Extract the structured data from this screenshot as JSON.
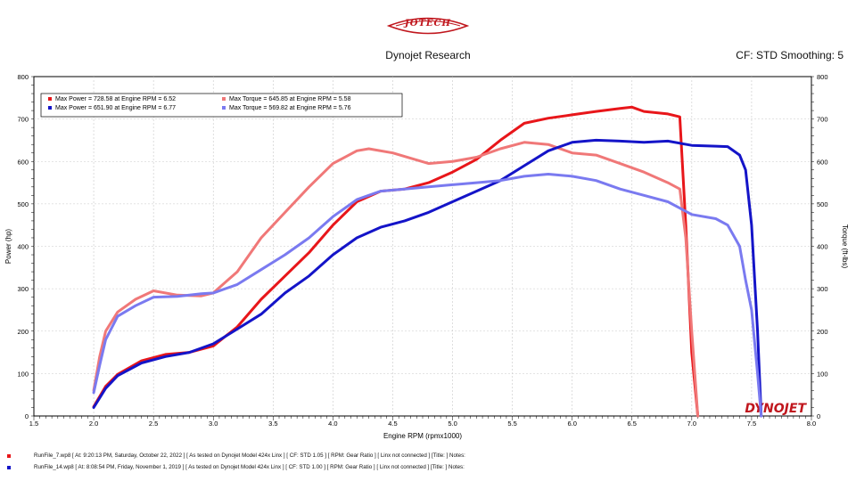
{
  "logo_text": "JOTECH",
  "header": {
    "title": "Dynojet Research",
    "cf_text": "CF: STD Smoothing: 5"
  },
  "watermark": "DYNOJET",
  "chart_data": {
    "type": "line",
    "xlabel": "Engine RPM (rpmx1000)",
    "ylabel": "Power (hp)",
    "y2label": "Torque (ft-lbs)",
    "xlim": [
      1.5,
      8.0
    ],
    "ylim": [
      0,
      800
    ],
    "xticks": [
      "1.5",
      "2.0",
      "2.5",
      "3.0",
      "3.5",
      "4.0",
      "4.5",
      "5.0",
      "5.5",
      "6.0",
      "6.5",
      "7.0",
      "7.5",
      "8.0"
    ],
    "yticks": [
      "0",
      "100",
      "200",
      "300",
      "400",
      "500",
      "600",
      "700",
      "800"
    ],
    "grid": true,
    "legend_position": "top-left",
    "legend": [
      {
        "color": "#e8161a",
        "text": "Max Power = 728.58 at Engine RPM = 6.52"
      },
      {
        "color": "#f07878",
        "text": "Max Torque = 645.85 at Engine RPM = 5.58"
      },
      {
        "color": "#1414c8",
        "text": "Max Power = 651.90 at Engine RPM = 6.77"
      },
      {
        "color": "#7a7af0",
        "text": "Max Torque = 569.82 at Engine RPM = 5.76"
      }
    ],
    "series": [
      {
        "color": "#e8161a",
        "x": [
          2.0,
          2.1,
          2.2,
          2.4,
          2.6,
          2.8,
          3.0,
          3.2,
          3.4,
          3.6,
          3.8,
          4.0,
          4.2,
          4.4,
          4.6,
          4.8,
          5.0,
          5.2,
          5.4,
          5.6,
          5.8,
          6.0,
          6.2,
          6.4,
          6.5,
          6.6,
          6.8,
          6.9,
          6.95,
          7.0,
          7.05
        ],
        "y": [
          22,
          70,
          98,
          130,
          145,
          150,
          165,
          210,
          275,
          330,
          385,
          450,
          505,
          530,
          535,
          550,
          575,
          605,
          650,
          690,
          702,
          710,
          718,
          725,
          728,
          718,
          712,
          705,
          450,
          150,
          0
        ]
      },
      {
        "color": "#f07878",
        "x": [
          2.0,
          2.05,
          2.1,
          2.2,
          2.35,
          2.5,
          2.7,
          2.9,
          3.0,
          3.2,
          3.4,
          3.6,
          3.8,
          4.0,
          4.2,
          4.3,
          4.5,
          4.8,
          5.0,
          5.2,
          5.4,
          5.6,
          5.8,
          6.0,
          6.2,
          6.4,
          6.6,
          6.8,
          6.9,
          6.95,
          7.0,
          7.05
        ],
        "y": [
          60,
          140,
          200,
          245,
          275,
          295,
          285,
          283,
          290,
          340,
          420,
          480,
          540,
          595,
          625,
          630,
          620,
          595,
          600,
          610,
          630,
          645,
          640,
          620,
          615,
          595,
          575,
          550,
          535,
          420,
          200,
          0
        ]
      },
      {
        "color": "#1414c8",
        "x": [
          2.0,
          2.1,
          2.2,
          2.4,
          2.6,
          2.8,
          3.0,
          3.2,
          3.4,
          3.6,
          3.8,
          4.0,
          4.2,
          4.4,
          4.6,
          4.8,
          5.0,
          5.2,
          5.4,
          5.6,
          5.8,
          6.0,
          6.2,
          6.4,
          6.6,
          6.8,
          7.0,
          7.2,
          7.3,
          7.4,
          7.45,
          7.5,
          7.55,
          7.58
        ],
        "y": [
          20,
          65,
          95,
          125,
          140,
          150,
          170,
          205,
          240,
          290,
          330,
          380,
          420,
          445,
          460,
          480,
          505,
          530,
          555,
          590,
          625,
          645,
          650,
          648,
          645,
          648,
          638,
          636,
          635,
          615,
          580,
          450,
          200,
          0
        ]
      },
      {
        "color": "#7a7af0",
        "x": [
          2.0,
          2.05,
          2.1,
          2.2,
          2.35,
          2.5,
          2.7,
          2.9,
          3.0,
          3.2,
          3.4,
          3.6,
          3.8,
          4.0,
          4.2,
          4.4,
          4.6,
          4.8,
          5.0,
          5.2,
          5.4,
          5.6,
          5.8,
          6.0,
          6.2,
          6.4,
          6.6,
          6.8,
          7.0,
          7.2,
          7.3,
          7.4,
          7.45,
          7.5,
          7.55,
          7.58
        ],
        "y": [
          55,
          120,
          180,
          235,
          260,
          280,
          282,
          288,
          290,
          310,
          345,
          380,
          420,
          470,
          510,
          530,
          535,
          540,
          545,
          550,
          555,
          565,
          570,
          565,
          555,
          535,
          520,
          505,
          475,
          465,
          450,
          400,
          320,
          250,
          100,
          0
        ]
      }
    ]
  },
  "footer": {
    "runs": [
      {
        "color": "#e8161a",
        "text": "RunFile_7.wp8 [ At: 9:20:13 PM, Saturday, October 22, 2022 ] [ As tested on Dynojet Model 424x Linx ] [ CF: STD 1.05 ] [ RPM: Gear Ratio ] [ Linx not connected ] [Title: ]  Notes:"
      },
      {
        "color": "#1414c8",
        "text": "RunFile_14.wp8 [ At: 8:08:54 PM, Friday, November 1, 2019 ] [ As tested on Dynojet Model 424x Linx ] [ CF: STD 1.00 ] [ RPM: Gear Ratio ] [ Linx not connected ] [Title: ]  Notes:"
      }
    ]
  }
}
